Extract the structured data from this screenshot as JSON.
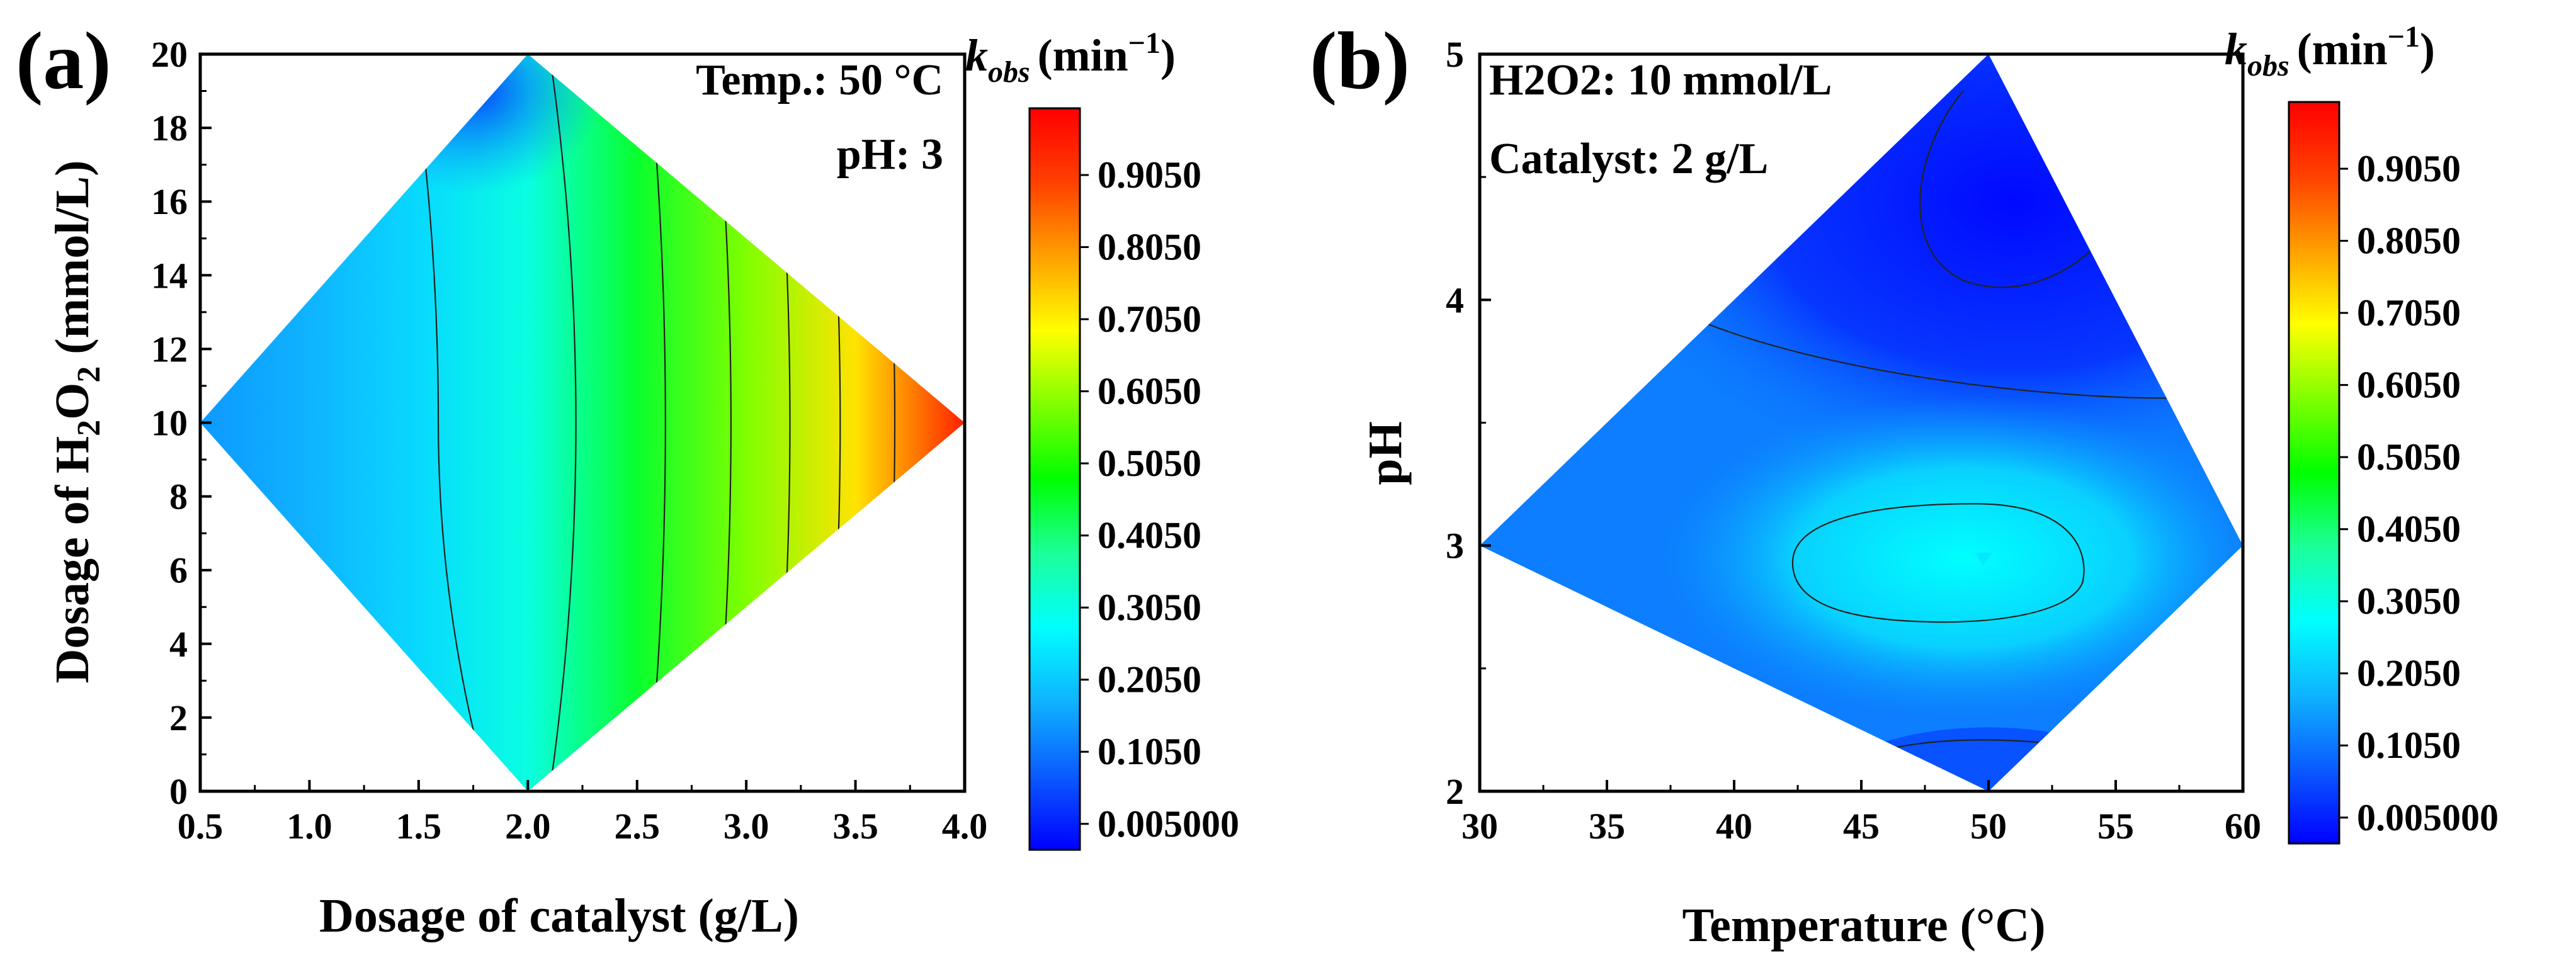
{
  "colormap": [
    "#0000ff",
    "#0a5bff",
    "#0fb3ff",
    "#00ffff",
    "#1dff9a",
    "#00ff00",
    "#80ff00",
    "#ffff00",
    "#ffa000",
    "#ff4000",
    "#ff0000"
  ],
  "colorbar_ticks": [
    "0.9050",
    "0.8050",
    "0.7050",
    "0.6050",
    "0.5050",
    "0.4050",
    "0.3050",
    "0.2050",
    "0.1050",
    "0.005000"
  ],
  "colorbar_title": {
    "symbol": "k",
    "subscript": "obs",
    "unit": "(min",
    "exponent": "−1",
    "close": ")"
  },
  "chart_data": [
    {
      "panel": "(a)",
      "type": "heatmap",
      "xlabel": "Dosage of catalyst (g/L)",
      "ylabel_parts": [
        "Dosage of H",
        "2",
        "O",
        "2",
        " (mmol/L)"
      ],
      "xlim": [
        0.5,
        4.0
      ],
      "ylim": [
        0,
        20
      ],
      "xticks": [
        "0.5",
        "1.0",
        "1.5",
        "2.0",
        "2.5",
        "3.0",
        "3.5",
        "4.0"
      ],
      "yticks": [
        "0",
        "2",
        "4",
        "6",
        "8",
        "10",
        "12",
        "14",
        "16",
        "18",
        "20"
      ],
      "annotations": [
        "Temp.:  50 °C",
        "pH: 3"
      ],
      "domain_vertices": [
        [
          2.0,
          20
        ],
        [
          4.0,
          10
        ],
        [
          2.0,
          0
        ],
        [
          0.5,
          10
        ]
      ],
      "colorbar": {
        "min": 0.005,
        "max": 1.0
      },
      "approx_kobs_vs_catalyst": [
        {
          "x": 0.5,
          "k": 0.17
        },
        {
          "x": 1.0,
          "k": 0.2
        },
        {
          "x": 1.5,
          "k": 0.25
        },
        {
          "x": 2.0,
          "k": 0.33
        },
        {
          "x": 2.5,
          "k": 0.47
        },
        {
          "x": 3.0,
          "k": 0.6
        },
        {
          "x": 3.5,
          "k": 0.73
        },
        {
          "x": 4.0,
          "k": 0.95
        }
      ],
      "low_region_center": [
        1.75,
        19
      ],
      "contour_levels": [
        0.1,
        0.2,
        0.3,
        0.4,
        0.5,
        0.6,
        0.7
      ]
    },
    {
      "panel": "(b)",
      "type": "heatmap",
      "xlabel": "Temperature (°C)",
      "ylabel": "pH",
      "xlim": [
        30,
        60
      ],
      "ylim": [
        2,
        5
      ],
      "xticks": [
        "30",
        "35",
        "40",
        "45",
        "50",
        "55",
        "60"
      ],
      "yticks": [
        "2",
        "3",
        "4",
        "5"
      ],
      "annotations": [
        "H2O2:  10 mmol/L",
        "Catalyst: 2 g/L"
      ],
      "domain_vertices": [
        [
          50,
          5
        ],
        [
          60,
          3
        ],
        [
          50,
          2
        ],
        [
          30,
          3
        ]
      ],
      "colorbar": {
        "min": 0.005,
        "max": 1.0
      },
      "peak": {
        "temp": 49,
        "pH": 2.95,
        "k": 0.3
      },
      "minimum": {
        "temp": 51,
        "pH": 4.4,
        "k": 0.02
      },
      "contour_levels": [
        0.05,
        0.1,
        0.15,
        0.2,
        0.25
      ]
    }
  ]
}
